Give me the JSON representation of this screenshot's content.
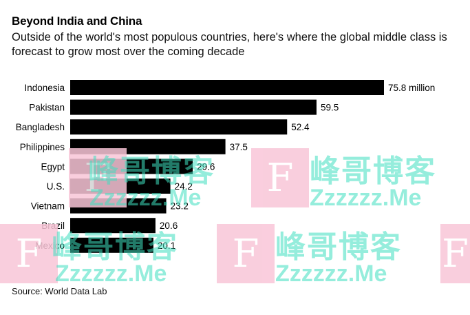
{
  "header": {
    "title": "Beyond India and China",
    "subtitle": "Outside of the world's most populous countries, here's where the global middle class is forecast to grow most over the coming decade"
  },
  "source": "Source: World Data Lab",
  "watermark": {
    "letter": "F",
    "text_cn": "峰哥博客",
    "text_en": "Zzzzzz.Me"
  },
  "chart_data": {
    "type": "bar",
    "orientation": "horizontal",
    "categories": [
      "Indonesia",
      "Pakistan",
      "Bangladesh",
      "Philippines",
      "Egypt",
      "U.S.",
      "Vietnam",
      "Brazil",
      "Mexico"
    ],
    "values": [
      75.8,
      59.5,
      52.4,
      37.5,
      29.6,
      24.2,
      23.2,
      20.6,
      20.1
    ],
    "data_labels": [
      "75.8 million",
      "59.5",
      "52.4",
      "37.5",
      "29.6",
      "24.2",
      "23.2",
      "20.6",
      "20.1"
    ],
    "title": "Beyond India and China",
    "xlabel": "",
    "ylabel": "",
    "xlim": [
      0,
      75.8
    ],
    "grid": false,
    "bar_color": "#000000"
  }
}
